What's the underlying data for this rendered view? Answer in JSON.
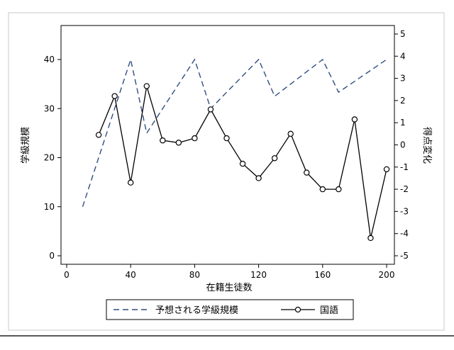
{
  "chart_data": {
    "type": "line",
    "title": "",
    "xlabel": "在籍生徒数",
    "ylabel_left": "学級規模",
    "ylabel_right": "得点変化",
    "xlim": [
      0,
      200
    ],
    "ylim_left": [
      0,
      45
    ],
    "ylim_right": [
      -5,
      5
    ],
    "x_ticks": [
      0,
      40,
      80,
      120,
      160,
      200
    ],
    "y_left_ticks": [
      0,
      10,
      20,
      30,
      40
    ],
    "y_right_ticks": [
      -5,
      -4,
      -3,
      -2,
      -1,
      0,
      1,
      2,
      3,
      4,
      5
    ],
    "grid": false,
    "legend_position": "bottom",
    "series": [
      {
        "name": "予想される学級規模",
        "axis": "left",
        "style": "dashed",
        "color": "#2f4f7f",
        "x": [
          10,
          40,
          50,
          80,
          90,
          120,
          130,
          160,
          170,
          200
        ],
        "y": [
          10,
          40,
          25,
          40,
          30,
          40,
          32.5,
          40,
          33.33,
          40
        ]
      },
      {
        "name": "国語",
        "axis": "right",
        "style": "solid-circle-markers",
        "color": "#000000",
        "x": [
          20,
          30,
          40,
          50,
          60,
          70,
          80,
          90,
          100,
          110,
          120,
          130,
          140,
          150,
          160,
          170,
          180,
          190,
          200
        ],
        "y": [
          0.45,
          2.2,
          -1.7,
          2.65,
          0.2,
          0.1,
          0.3,
          1.6,
          0.3,
          -0.85,
          -1.5,
          -0.6,
          0.5,
          -1.25,
          -2,
          -2,
          1.15,
          -4.2,
          -1.1
        ]
      }
    ]
  }
}
